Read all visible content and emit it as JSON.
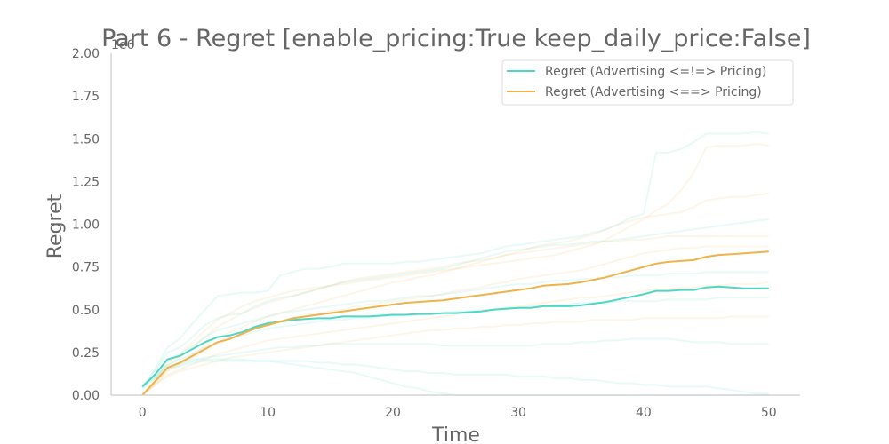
{
  "chart_data": {
    "type": "line",
    "title": "Part 6 - Regret [enable_pricing:True keep_daily_price:False]",
    "xlabel": "Time",
    "ylabel": "Regret",
    "y_offset_label": "1e6",
    "xlim": [
      -2.5,
      52.5
    ],
    "ylim": [
      0,
      2.0
    ],
    "x_ticks": [
      0,
      10,
      20,
      30,
      40,
      50
    ],
    "y_ticks": [
      0.0,
      0.25,
      0.5,
      0.75,
      1.0,
      1.25,
      1.5,
      1.75,
      2.0
    ],
    "y_tick_labels": [
      "0.00",
      "0.25",
      "0.50",
      "0.75",
      "1.00",
      "1.25",
      "1.50",
      "1.75",
      "2.00"
    ],
    "legend": {
      "position": "top-right"
    },
    "colors": {
      "teal": "#4fd6c4",
      "orange": "#f0b24a",
      "axis": "#cccccc",
      "text": "#666666"
    },
    "x": [
      0,
      1,
      2,
      3,
      4,
      5,
      6,
      7,
      8,
      9,
      10,
      11,
      12,
      13,
      14,
      15,
      16,
      17,
      18,
      19,
      20,
      21,
      22,
      23,
      24,
      25,
      26,
      27,
      28,
      29,
      30,
      31,
      32,
      33,
      34,
      35,
      36,
      37,
      38,
      39,
      40,
      41,
      42,
      43,
      44,
      45,
      46,
      47,
      48,
      49,
      50
    ],
    "series": [
      {
        "name": "Regret (Advertising <=!=> Pricing)",
        "color": "#4fd6c4",
        "values": [
          0.05,
          0.12,
          0.21,
          0.23,
          0.27,
          0.31,
          0.34,
          0.35,
          0.37,
          0.4,
          0.42,
          0.43,
          0.44,
          0.445,
          0.45,
          0.45,
          0.46,
          0.46,
          0.46,
          0.465,
          0.47,
          0.47,
          0.475,
          0.475,
          0.48,
          0.48,
          0.485,
          0.49,
          0.5,
          0.505,
          0.51,
          0.51,
          0.52,
          0.52,
          0.52,
          0.525,
          0.535,
          0.545,
          0.56,
          0.575,
          0.59,
          0.61,
          0.61,
          0.615,
          0.615,
          0.63,
          0.635,
          0.63,
          0.625,
          0.625,
          0.625
        ]
      },
      {
        "name": "Regret (Advertising <==> Pricing)",
        "color": "#f0b24a",
        "values": [
          0.0,
          0.08,
          0.16,
          0.19,
          0.23,
          0.27,
          0.31,
          0.33,
          0.36,
          0.39,
          0.41,
          0.43,
          0.45,
          0.46,
          0.47,
          0.48,
          0.49,
          0.5,
          0.51,
          0.52,
          0.53,
          0.54,
          0.545,
          0.55,
          0.555,
          0.565,
          0.575,
          0.585,
          0.595,
          0.605,
          0.615,
          0.625,
          0.64,
          0.645,
          0.65,
          0.66,
          0.675,
          0.69,
          0.71,
          0.73,
          0.75,
          0.77,
          0.78,
          0.785,
          0.79,
          0.81,
          0.82,
          0.825,
          0.83,
          0.835,
          0.84
        ]
      }
    ],
    "runs_teal": [
      [
        0.05,
        0.15,
        0.28,
        0.33,
        0.42,
        0.5,
        0.58,
        0.59,
        0.6,
        0.6,
        0.61,
        0.7,
        0.72,
        0.74,
        0.74,
        0.75,
        0.77,
        0.77,
        0.77,
        0.77,
        0.77,
        0.78,
        0.78,
        0.79,
        0.8,
        0.81,
        0.82,
        0.83,
        0.85,
        0.87,
        0.88,
        0.89,
        0.9,
        0.91,
        0.92,
        0.93,
        0.95,
        0.97,
        1.0,
        1.04,
        1.06,
        1.42,
        1.42,
        1.44,
        1.48,
        1.53,
        1.53,
        1.53,
        1.53,
        1.54,
        1.53
      ],
      [
        0.04,
        0.14,
        0.25,
        0.28,
        0.34,
        0.41,
        0.45,
        0.47,
        0.48,
        0.52,
        0.55,
        0.57,
        0.58,
        0.6,
        0.62,
        0.64,
        0.66,
        0.67,
        0.68,
        0.69,
        0.7,
        0.71,
        0.72,
        0.73,
        0.74,
        0.76,
        0.78,
        0.8,
        0.82,
        0.84,
        0.85,
        0.86,
        0.87,
        0.88,
        0.88,
        0.89,
        0.9,
        0.9,
        0.91,
        0.92,
        0.93,
        0.94,
        0.95,
        0.96,
        0.97,
        0.98,
        0.99,
        1.0,
        1.01,
        1.02,
        1.03
      ],
      [
        0.05,
        0.12,
        0.2,
        0.24,
        0.29,
        0.34,
        0.38,
        0.4,
        0.42,
        0.44,
        0.46,
        0.48,
        0.49,
        0.5,
        0.51,
        0.52,
        0.53,
        0.54,
        0.55,
        0.55,
        0.56,
        0.57,
        0.58,
        0.58,
        0.59,
        0.6,
        0.61,
        0.62,
        0.63,
        0.64,
        0.65,
        0.65,
        0.66,
        0.67,
        0.67,
        0.68,
        0.68,
        0.69,
        0.69,
        0.7,
        0.7,
        0.7,
        0.71,
        0.71,
        0.71,
        0.72,
        0.72,
        0.72,
        0.72,
        0.72,
        0.72
      ],
      [
        0.06,
        0.11,
        0.18,
        0.21,
        0.24,
        0.28,
        0.31,
        0.33,
        0.35,
        0.37,
        0.39,
        0.4,
        0.41,
        0.42,
        0.43,
        0.44,
        0.44,
        0.45,
        0.45,
        0.46,
        0.46,
        0.47,
        0.47,
        0.48,
        0.48,
        0.49,
        0.49,
        0.5,
        0.5,
        0.51,
        0.51,
        0.52,
        0.52,
        0.53,
        0.53,
        0.54,
        0.54,
        0.54,
        0.55,
        0.55,
        0.55,
        0.55,
        0.56,
        0.56,
        0.56,
        0.56,
        0.57,
        0.57,
        0.57,
        0.57,
        0.57
      ],
      [
        0.04,
        0.1,
        0.16,
        0.18,
        0.2,
        0.22,
        0.23,
        0.24,
        0.25,
        0.26,
        0.27,
        0.28,
        0.28,
        0.29,
        0.29,
        0.3,
        0.3,
        0.3,
        0.3,
        0.3,
        0.3,
        0.3,
        0.3,
        0.3,
        0.29,
        0.29,
        0.29,
        0.29,
        0.29,
        0.29,
        0.29,
        0.29,
        0.3,
        0.3,
        0.3,
        0.31,
        0.31,
        0.32,
        0.32,
        0.33,
        0.33,
        0.33,
        0.33,
        0.32,
        0.31,
        0.31,
        0.31,
        0.3,
        0.3,
        0.3,
        0.3
      ],
      [
        0.05,
        0.1,
        0.15,
        0.17,
        0.19,
        0.2,
        0.2,
        0.2,
        0.2,
        0.2,
        0.2,
        0.2,
        0.2,
        0.2,
        0.19,
        0.19,
        0.18,
        0.18,
        0.17,
        0.16,
        0.15,
        0.14,
        0.14,
        0.13,
        0.13,
        0.12,
        0.12,
        0.12,
        0.12,
        0.12,
        0.11,
        0.11,
        0.11,
        0.1,
        0.1,
        0.09,
        0.09,
        0.08,
        0.07,
        0.07,
        0.06,
        0.06,
        0.05,
        0.05,
        0.05,
        0.05,
        0.04,
        0.03,
        0.02,
        0.01,
        0.01
      ],
      [
        0.05,
        0.11,
        0.17,
        0.19,
        0.21,
        0.21,
        0.21,
        0.21,
        0.21,
        0.2,
        0.2,
        0.19,
        0.18,
        0.17,
        0.16,
        0.15,
        0.14,
        0.13,
        0.11,
        0.09,
        0.07,
        0.05,
        0.04,
        0.02,
        0.01,
        0.0,
        0.0,
        0.0,
        0.0,
        0.0,
        0.0,
        0.0,
        0.0,
        0.0,
        0.0,
        0.0,
        0.0,
        0.0,
        0.0,
        0.0,
        0.0,
        0.0,
        0.0,
        0.0,
        0.0,
        0.0,
        0.0,
        0.0,
        0.0,
        0.0,
        0.0
      ]
    ],
    "runs_orange": [
      [
        0.0,
        0.09,
        0.19,
        0.24,
        0.31,
        0.38,
        0.44,
        0.48,
        0.52,
        0.55,
        0.57,
        0.59,
        0.61,
        0.62,
        0.63,
        0.64,
        0.65,
        0.66,
        0.67,
        0.68,
        0.69,
        0.7,
        0.71,
        0.72,
        0.73,
        0.74,
        0.75,
        0.76,
        0.77,
        0.78,
        0.79,
        0.8,
        0.81,
        0.82,
        0.84,
        0.86,
        0.88,
        0.91,
        0.95,
        0.99,
        1.03,
        1.08,
        1.12,
        1.2,
        1.3,
        1.45,
        1.46,
        1.46,
        1.46,
        1.47,
        1.46
      ],
      [
        0.0,
        0.08,
        0.17,
        0.22,
        0.28,
        0.34,
        0.4,
        0.44,
        0.48,
        0.51,
        0.54,
        0.56,
        0.58,
        0.6,
        0.62,
        0.64,
        0.66,
        0.68,
        0.69,
        0.7,
        0.71,
        0.72,
        0.73,
        0.74,
        0.75,
        0.77,
        0.78,
        0.79,
        0.8,
        0.82,
        0.84,
        0.86,
        0.88,
        0.89,
        0.9,
        0.92,
        0.94,
        0.97,
        1.0,
        1.02,
        1.04,
        1.05,
        1.06,
        1.07,
        1.1,
        1.14,
        1.15,
        1.16,
        1.16,
        1.17,
        1.18
      ],
      [
        0.0,
        0.07,
        0.15,
        0.19,
        0.24,
        0.29,
        0.34,
        0.37,
        0.4,
        0.43,
        0.46,
        0.48,
        0.5,
        0.52,
        0.54,
        0.56,
        0.58,
        0.6,
        0.62,
        0.64,
        0.66,
        0.67,
        0.69,
        0.7,
        0.72,
        0.74,
        0.76,
        0.78,
        0.8,
        0.82,
        0.83,
        0.84,
        0.85,
        0.86,
        0.87,
        0.88,
        0.89,
        0.9,
        0.9,
        0.91,
        0.91,
        0.92,
        0.93,
        0.93,
        0.93,
        0.93,
        0.93,
        0.93,
        0.93,
        0.93,
        0.93
      ],
      [
        0.0,
        0.07,
        0.14,
        0.18,
        0.22,
        0.26,
        0.3,
        0.33,
        0.36,
        0.39,
        0.41,
        0.43,
        0.45,
        0.46,
        0.48,
        0.49,
        0.5,
        0.52,
        0.53,
        0.54,
        0.55,
        0.56,
        0.57,
        0.58,
        0.59,
        0.61,
        0.62,
        0.63,
        0.65,
        0.66,
        0.68,
        0.69,
        0.7,
        0.71,
        0.72,
        0.73,
        0.75,
        0.77,
        0.79,
        0.81,
        0.83,
        0.84,
        0.85,
        0.86,
        0.86,
        0.87,
        0.87,
        0.87,
        0.87,
        0.87,
        0.87
      ],
      [
        0.0,
        0.06,
        0.12,
        0.15,
        0.18,
        0.21,
        0.24,
        0.26,
        0.28,
        0.3,
        0.32,
        0.33,
        0.34,
        0.35,
        0.36,
        0.37,
        0.38,
        0.39,
        0.4,
        0.41,
        0.42,
        0.43,
        0.44,
        0.45,
        0.46,
        0.47,
        0.48,
        0.49,
        0.5,
        0.51,
        0.52,
        0.53,
        0.54,
        0.55,
        0.56,
        0.57,
        0.57,
        0.58,
        0.59,
        0.6,
        0.61,
        0.62,
        0.62,
        0.63,
        0.63,
        0.64,
        0.64,
        0.65,
        0.65,
        0.65,
        0.66
      ],
      [
        0.0,
        0.06,
        0.11,
        0.14,
        0.16,
        0.18,
        0.2,
        0.22,
        0.23,
        0.24,
        0.25,
        0.26,
        0.27,
        0.28,
        0.29,
        0.3,
        0.31,
        0.32,
        0.33,
        0.34,
        0.35,
        0.36,
        0.37,
        0.38,
        0.38,
        0.39,
        0.39,
        0.4,
        0.4,
        0.41,
        0.41,
        0.42,
        0.42,
        0.43,
        0.43,
        0.43,
        0.44,
        0.44,
        0.44,
        0.44,
        0.45,
        0.45,
        0.45,
        0.45,
        0.45,
        0.45,
        0.45,
        0.46,
        0.46,
        0.46,
        0.46
      ]
    ]
  }
}
